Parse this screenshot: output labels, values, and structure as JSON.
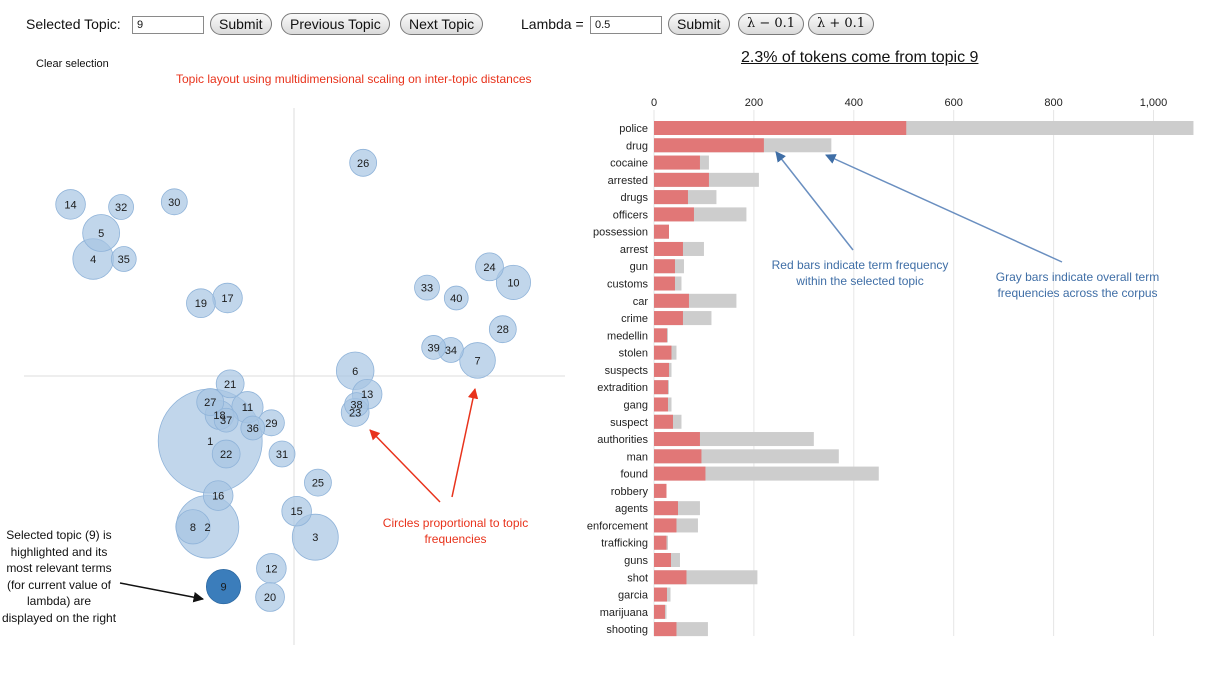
{
  "controls": {
    "selected_topic_label": "Selected Topic:",
    "selected_topic_value": "9",
    "submit_label": "Submit",
    "previous_label": "Previous Topic",
    "next_label": "Next Topic",
    "lambda_label": "Lambda =",
    "lambda_value": "0.5",
    "lambda_submit_label": "Submit",
    "lambda_minus_label": "λ − 0.1",
    "lambda_plus_label": "λ + 0.1",
    "clear_selection_label": "Clear selection"
  },
  "annotations": {
    "layout_title": "Topic layout using multidimensional scaling on inter-topic distances",
    "circles_note": "Circles proportional to topic frequencies",
    "red_note": "Red bars indicate term frequency within the selected topic",
    "gray_note": "Gray bars indicate overall term frequencies across the corpus",
    "selected_note": "Selected topic (9) is highlighted and its most relevant terms (for current value of lambda) are displayed on the right"
  },
  "colors": {
    "circle": "#a6c4e3",
    "circle_selected": "#3b7dbb",
    "bar_red": "#e17777",
    "bar_gray": "#cdcdcd",
    "annot_red": "#e8331c",
    "annot_blue": "#3f6ea6"
  },
  "chart_data": [
    {
      "type": "scatter",
      "title": "Topic layout using multidimensional scaling on inter-topic distances",
      "selected_topic": 9,
      "xlim": [
        -1,
        1
      ],
      "ylim": [
        -1,
        1
      ],
      "topics": [
        {
          "id": 1,
          "x": -0.63,
          "y": -0.25,
          "size": 24
        },
        {
          "id": 2,
          "x": -0.65,
          "y": -0.58,
          "size": 8
        },
        {
          "id": 3,
          "x": 0.16,
          "y": -0.62,
          "size": 4
        },
        {
          "id": 4,
          "x": -1.51,
          "y": 0.45,
          "size": 3
        },
        {
          "id": 5,
          "x": -1.45,
          "y": 0.55,
          "size": 2.4
        },
        {
          "id": 6,
          "x": 0.46,
          "y": 0.02,
          "size": 2.5
        },
        {
          "id": 7,
          "x": 1.38,
          "y": 0.06,
          "size": 2.2
        },
        {
          "id": 8,
          "x": -0.76,
          "y": -0.58,
          "size": 2
        },
        {
          "id": 9,
          "x": -0.53,
          "y": -0.81,
          "size": 2
        },
        {
          "id": 10,
          "x": 1.65,
          "y": 0.36,
          "size": 2
        },
        {
          "id": 11,
          "x": -0.35,
          "y": -0.12,
          "size": 1.6
        },
        {
          "id": 12,
          "x": -0.17,
          "y": -0.74,
          "size": 1.4
        },
        {
          "id": 13,
          "x": 0.55,
          "y": -0.07,
          "size": 1.4
        },
        {
          "id": 14,
          "x": -1.68,
          "y": 0.66,
          "size": 1.4
        },
        {
          "id": 15,
          "x": 0.02,
          "y": -0.52,
          "size": 1.4
        },
        {
          "id": 16,
          "x": -0.57,
          "y": -0.46,
          "size": 1.4
        },
        {
          "id": 17,
          "x": -0.5,
          "y": 0.3,
          "size": 1.4
        },
        {
          "id": 18,
          "x": -0.56,
          "y": -0.15,
          "size": 1.3
        },
        {
          "id": 19,
          "x": -0.7,
          "y": 0.28,
          "size": 1.3
        },
        {
          "id": 20,
          "x": -0.18,
          "y": -0.85,
          "size": 1.3
        },
        {
          "id": 21,
          "x": -0.48,
          "y": -0.03,
          "size": 1.2
        },
        {
          "id": 22,
          "x": -0.51,
          "y": -0.3,
          "size": 1.2
        },
        {
          "id": 23,
          "x": 0.46,
          "y": -0.14,
          "size": 1.2
        },
        {
          "id": 24,
          "x": 1.47,
          "y": 0.42,
          "size": 1.2
        },
        {
          "id": 25,
          "x": 0.18,
          "y": -0.41,
          "size": 1.1
        },
        {
          "id": 26,
          "x": 0.52,
          "y": 0.82,
          "size": 1.1
        },
        {
          "id": 27,
          "x": -0.63,
          "y": -0.1,
          "size": 1.1
        },
        {
          "id": 28,
          "x": 1.57,
          "y": 0.18,
          "size": 1.1
        },
        {
          "id": 29,
          "x": -0.17,
          "y": -0.18,
          "size": 1
        },
        {
          "id": 30,
          "x": -0.9,
          "y": 0.67,
          "size": 1
        },
        {
          "id": 31,
          "x": -0.09,
          "y": -0.3,
          "size": 1
        },
        {
          "id": 32,
          "x": -1.3,
          "y": 0.65,
          "size": 0.9
        },
        {
          "id": 33,
          "x": 1.0,
          "y": 0.34,
          "size": 0.9
        },
        {
          "id": 34,
          "x": 1.18,
          "y": 0.1,
          "size": 0.9
        },
        {
          "id": 35,
          "x": -1.28,
          "y": 0.45,
          "size": 0.9
        },
        {
          "id": 36,
          "x": -0.31,
          "y": -0.2,
          "size": 0.8
        },
        {
          "id": 37,
          "x": -0.51,
          "y": -0.17,
          "size": 0.8
        },
        {
          "id": 38,
          "x": 0.47,
          "y": -0.11,
          "size": 0.8
        },
        {
          "id": 39,
          "x": 1.05,
          "y": 0.11,
          "size": 0.8
        },
        {
          "id": 40,
          "x": 1.22,
          "y": 0.3,
          "size": 0.8
        }
      ]
    },
    {
      "type": "bar",
      "orientation": "horizontal",
      "title": "2.3% of tokens come from topic 9",
      "xlim": [
        0,
        1100
      ],
      "xticks": [
        0,
        200,
        400,
        600,
        800,
        1000
      ],
      "xtick_labels": [
        "0",
        "200",
        "400",
        "600",
        "800",
        "1,000"
      ],
      "categories": [
        "police",
        "drug",
        "cocaine",
        "arrested",
        "drugs",
        "officers",
        "possession",
        "arrest",
        "gun",
        "customs",
        "car",
        "crime",
        "medellin",
        "stolen",
        "suspects",
        "extradition",
        "gang",
        "suspect",
        "authorities",
        "man",
        "found",
        "robbery",
        "agents",
        "enforcement",
        "trafficking",
        "guns",
        "shot",
        "garcia",
        "marijuana",
        "shooting"
      ],
      "series": [
        {
          "name": "Overall term frequency",
          "values": [
            1080,
            355,
            110,
            210,
            125,
            185,
            30,
            100,
            60,
            55,
            165,
            115,
            28,
            45,
            35,
            30,
            35,
            55,
            320,
            370,
            450,
            25,
            92,
            88,
            28,
            52,
            207,
            33,
            25,
            108
          ]
        },
        {
          "name": "Estimated term frequency within the selected topic",
          "values": [
            505,
            220,
            92,
            110,
            68,
            80,
            30,
            58,
            42,
            42,
            70,
            58,
            26,
            35,
            30,
            28,
            28,
            38,
            92,
            95,
            103,
            25,
            48,
            45,
            25,
            34,
            65,
            26,
            22,
            45
          ]
        }
      ]
    }
  ]
}
